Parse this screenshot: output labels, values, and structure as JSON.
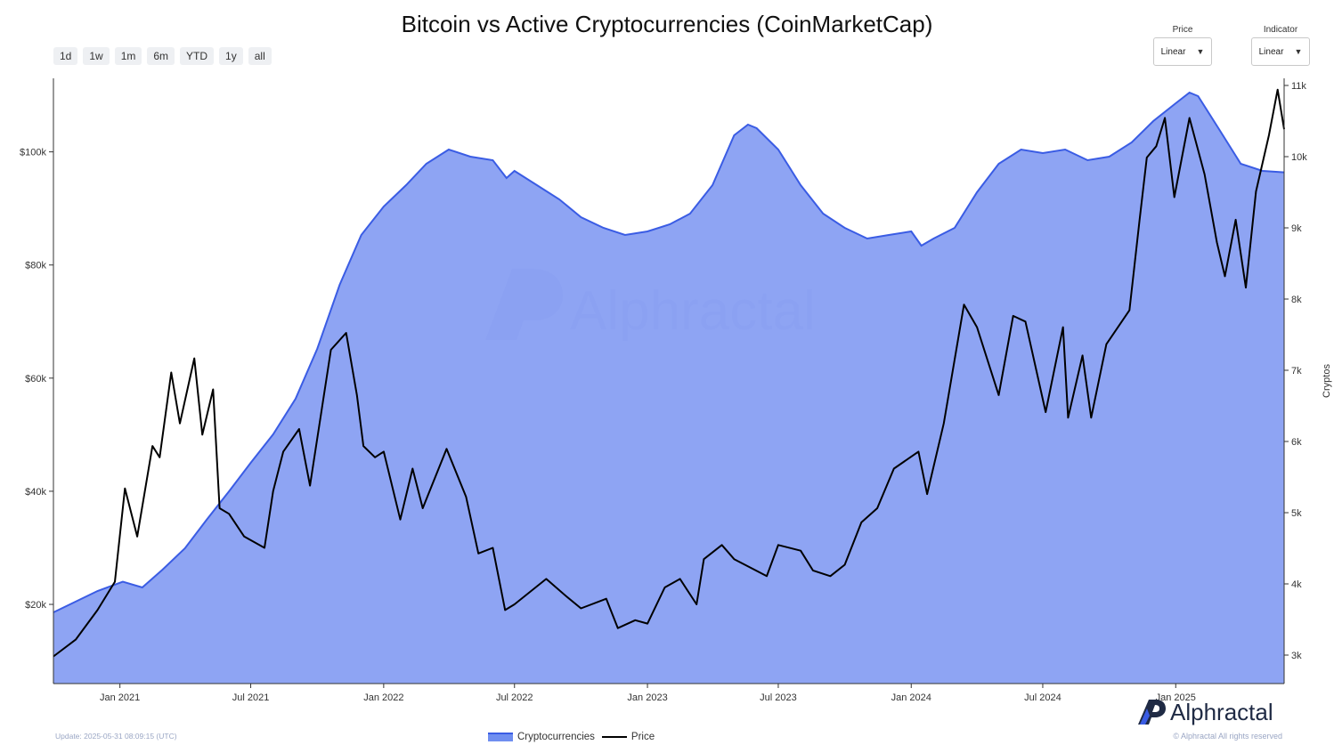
{
  "chart_data": {
    "type": "line",
    "title": "Bitcoin vs Active Cryptocurrencies (CoinMarketCap)",
    "range_buttons": [
      "1d",
      "1w",
      "1m",
      "6m",
      "YTD",
      "1y",
      "all"
    ],
    "selectors": [
      {
        "label": "Price",
        "value": "Linear"
      },
      {
        "label": "Indicator",
        "value": "Linear"
      }
    ],
    "x_ticks": [
      "Jan 2021",
      "Jul 2021",
      "Jan 2022",
      "Jul 2022",
      "Jan 2023",
      "Jul 2023",
      "Jan 2024",
      "Jul 2024",
      "Jan 2025"
    ],
    "y_left_ticks": [
      "$20k",
      "$40k",
      "$60k",
      "$80k",
      "$100k"
    ],
    "y_right_ticks": [
      "3k",
      "4k",
      "5k",
      "6k",
      "7k",
      "8k",
      "9k",
      "10k",
      "11k"
    ],
    "y_right_label": "Cryptos",
    "y_left_range": [
      6000,
      113000
    ],
    "y_right_range": [
      2600,
      11100
    ],
    "x_range": [
      "2020-10-01",
      "2025-05-31"
    ],
    "grid": false,
    "legend_position": "bottom",
    "series": [
      {
        "name": "Cryptocurrencies",
        "type": "area",
        "axis": "right",
        "color": "#3a5ce4",
        "fill": "#889ff2",
        "points": [
          [
            "2020-10-01",
            3600
          ],
          [
            "2020-12-01",
            3900
          ],
          [
            "2021-01-05",
            4030
          ],
          [
            "2021-02-01",
            3950
          ],
          [
            "2021-03-01",
            4200
          ],
          [
            "2021-04-01",
            4500
          ],
          [
            "2021-05-01",
            4900
          ],
          [
            "2021-06-01",
            5300
          ],
          [
            "2021-07-01",
            5700
          ],
          [
            "2021-08-01",
            6100
          ],
          [
            "2021-09-01",
            6600
          ],
          [
            "2021-10-01",
            7300
          ],
          [
            "2021-11-01",
            8200
          ],
          [
            "2021-12-01",
            8900
          ],
          [
            "2022-01-01",
            9300
          ],
          [
            "2022-02-01",
            9600
          ],
          [
            "2022-03-01",
            9900
          ],
          [
            "2022-04-01",
            10100
          ],
          [
            "2022-05-01",
            10000
          ],
          [
            "2022-06-01",
            9950
          ],
          [
            "2022-06-20",
            9700
          ],
          [
            "2022-07-01",
            9800
          ],
          [
            "2022-08-01",
            9600
          ],
          [
            "2022-09-01",
            9400
          ],
          [
            "2022-10-01",
            9150
          ],
          [
            "2022-11-01",
            9000
          ],
          [
            "2022-12-01",
            8900
          ],
          [
            "2023-01-01",
            8950
          ],
          [
            "2023-02-01",
            9050
          ],
          [
            "2023-03-01",
            9200
          ],
          [
            "2023-04-01",
            9600
          ],
          [
            "2023-05-01",
            10300
          ],
          [
            "2023-05-20",
            10450
          ],
          [
            "2023-06-01",
            10400
          ],
          [
            "2023-07-01",
            10100
          ],
          [
            "2023-08-01",
            9600
          ],
          [
            "2023-09-01",
            9200
          ],
          [
            "2023-10-01",
            9000
          ],
          [
            "2023-11-01",
            8850
          ],
          [
            "2023-12-01",
            8900
          ],
          [
            "2024-01-01",
            8950
          ],
          [
            "2024-01-15",
            8750
          ],
          [
            "2024-02-01",
            8850
          ],
          [
            "2024-03-01",
            9000
          ],
          [
            "2024-04-01",
            9500
          ],
          [
            "2024-05-01",
            9900
          ],
          [
            "2024-06-01",
            10100
          ],
          [
            "2024-07-01",
            10050
          ],
          [
            "2024-08-01",
            10100
          ],
          [
            "2024-09-01",
            9950
          ],
          [
            "2024-10-01",
            10000
          ],
          [
            "2024-11-01",
            10200
          ],
          [
            "2024-12-01",
            10500
          ],
          [
            "2025-01-01",
            10750
          ],
          [
            "2025-01-20",
            10900
          ],
          [
            "2025-02-01",
            10850
          ],
          [
            "2025-03-01",
            10400
          ],
          [
            "2025-04-01",
            9900
          ],
          [
            "2025-05-01",
            9800
          ],
          [
            "2025-05-31",
            9780
          ]
        ]
      },
      {
        "name": "Price",
        "type": "line",
        "axis": "left",
        "color": "#000000",
        "points": [
          [
            "2020-10-01",
            10800
          ],
          [
            "2020-11-01",
            13800
          ],
          [
            "2020-12-01",
            19000
          ],
          [
            "2020-12-25",
            24000
          ],
          [
            "2021-01-08",
            40500
          ],
          [
            "2021-01-25",
            32000
          ],
          [
            "2021-02-15",
            48000
          ],
          [
            "2021-02-25",
            46000
          ],
          [
            "2021-03-13",
            61000
          ],
          [
            "2021-03-25",
            52000
          ],
          [
            "2021-04-14",
            63500
          ],
          [
            "2021-04-25",
            50000
          ],
          [
            "2021-05-10",
            58000
          ],
          [
            "2021-05-19",
            37000
          ],
          [
            "2021-06-01",
            36000
          ],
          [
            "2021-06-22",
            32000
          ],
          [
            "2021-07-20",
            30000
          ],
          [
            "2021-08-01",
            40000
          ],
          [
            "2021-08-15",
            47000
          ],
          [
            "2021-09-06",
            51000
          ],
          [
            "2021-09-21",
            41000
          ],
          [
            "2021-10-20",
            65000
          ],
          [
            "2021-11-10",
            68000
          ],
          [
            "2021-11-25",
            57000
          ],
          [
            "2021-12-04",
            48000
          ],
          [
            "2021-12-20",
            46000
          ],
          [
            "2022-01-01",
            47000
          ],
          [
            "2022-01-24",
            35000
          ],
          [
            "2022-02-10",
            44000
          ],
          [
            "2022-02-24",
            37000
          ],
          [
            "2022-03-29",
            47500
          ],
          [
            "2022-04-25",
            39000
          ],
          [
            "2022-05-12",
            29000
          ],
          [
            "2022-06-01",
            30000
          ],
          [
            "2022-06-18",
            19000
          ],
          [
            "2022-07-01",
            20000
          ],
          [
            "2022-08-14",
            24500
          ],
          [
            "2022-09-10",
            21500
          ],
          [
            "2022-10-01",
            19300
          ],
          [
            "2022-11-05",
            21000
          ],
          [
            "2022-11-21",
            15800
          ],
          [
            "2022-12-15",
            17200
          ],
          [
            "2023-01-01",
            16600
          ],
          [
            "2023-01-25",
            23000
          ],
          [
            "2023-02-15",
            24500
          ],
          [
            "2023-03-10",
            20000
          ],
          [
            "2023-03-20",
            28000
          ],
          [
            "2023-04-14",
            30500
          ],
          [
            "2023-05-01",
            28000
          ],
          [
            "2023-06-15",
            25000
          ],
          [
            "2023-07-01",
            30500
          ],
          [
            "2023-08-01",
            29500
          ],
          [
            "2023-08-18",
            26000
          ],
          [
            "2023-09-11",
            25000
          ],
          [
            "2023-10-01",
            27000
          ],
          [
            "2023-10-24",
            34500
          ],
          [
            "2023-11-15",
            37000
          ],
          [
            "2023-12-08",
            44000
          ],
          [
            "2024-01-11",
            47000
          ],
          [
            "2024-01-23",
            39500
          ],
          [
            "2024-02-15",
            52000
          ],
          [
            "2024-03-14",
            73000
          ],
          [
            "2024-04-01",
            69000
          ],
          [
            "2024-05-01",
            57000
          ],
          [
            "2024-05-21",
            71000
          ],
          [
            "2024-06-07",
            70000
          ],
          [
            "2024-07-05",
            54000
          ],
          [
            "2024-07-29",
            69000
          ],
          [
            "2024-08-05",
            53000
          ],
          [
            "2024-08-25",
            64000
          ],
          [
            "2024-09-06",
            53000
          ],
          [
            "2024-09-27",
            66000
          ],
          [
            "2024-10-29",
            72000
          ],
          [
            "2024-11-12",
            88000
          ],
          [
            "2024-11-22",
            99000
          ],
          [
            "2024-12-05",
            101000
          ],
          [
            "2024-12-17",
            106000
          ],
          [
            "2024-12-30",
            92000
          ],
          [
            "2025-01-20",
            106000
          ],
          [
            "2025-02-10",
            96000
          ],
          [
            "2025-02-27",
            84000
          ],
          [
            "2025-03-10",
            78000
          ],
          [
            "2025-03-25",
            88000
          ],
          [
            "2025-04-08",
            76000
          ],
          [
            "2025-04-22",
            93000
          ],
          [
            "2025-05-10",
            103000
          ],
          [
            "2025-05-22",
            111000
          ],
          [
            "2025-05-31",
            104000
          ]
        ]
      }
    ]
  },
  "watermark": "Alphractal",
  "brand": "Alphractal",
  "update_text": "Update: 2025-05-31 08:09:15 (UTC)",
  "rights_text": "© Alphractal All rights reserved"
}
